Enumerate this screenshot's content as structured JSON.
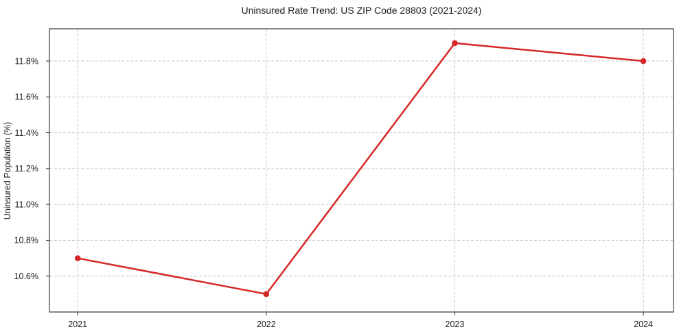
{
  "chart_data": {
    "type": "line",
    "title": "Uninsured Rate Trend: US ZIP Code 28803 (2021-2024)",
    "xlabel": "",
    "ylabel": "Uninsured Population (%)",
    "x": [
      2021,
      2022,
      2023,
      2024
    ],
    "x_tick_labels": [
      "2021",
      "2022",
      "2023",
      "2024"
    ],
    "series": [
      {
        "values": [
          10.7,
          10.5,
          11.9,
          11.8
        ],
        "color": "#d62728",
        "marker": "circle",
        "line_width": 2.5,
        "marker_radius": 4.3
      }
    ],
    "y_ticks": [
      10.6,
      10.8,
      11.0,
      11.2,
      11.4,
      11.6,
      11.8
    ],
    "y_tick_labels": [
      "10.6%",
      "10.8%",
      "11.0%",
      "11.2%",
      "11.4%",
      "11.6%",
      "11.8%"
    ],
    "xlim": [
      2020.85,
      2024.16
    ],
    "ylim": [
      10.4,
      11.98
    ],
    "grid": true,
    "grid_style": "dashed",
    "grid_color": "#c6c6c6",
    "axes_color": "#262626",
    "background": "#ffffff",
    "legend": "none"
  }
}
